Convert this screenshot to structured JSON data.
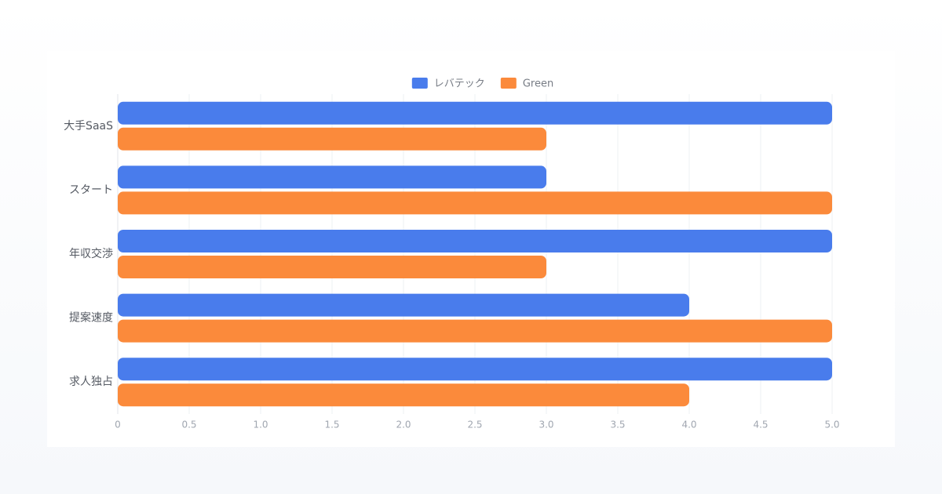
{
  "chart_data": {
    "type": "hbar",
    "categories": [
      "大手SaaS",
      "スタート",
      "年収交渉",
      "提案速度",
      "求人独占"
    ],
    "series": [
      {
        "name": "レバテック",
        "color": "#497cec",
        "values": [
          5,
          3,
          5,
          4,
          5
        ]
      },
      {
        "name": "Green",
        "color": "#fb8a3b",
        "values": [
          3,
          5,
          3,
          5,
          4
        ]
      }
    ],
    "xlim": [
      0,
      5
    ],
    "xticks": [
      0,
      0.5,
      {
        "value": 1,
        "label": "1.0"
      },
      1.5,
      {
        "value": 2,
        "label": "2.0"
      },
      2.5,
      {
        "value": 3,
        "label": "3.0"
      },
      3.5,
      {
        "value": 4,
        "label": "4.0"
      },
      4.5,
      {
        "value": 5,
        "label": "5.0"
      }
    ],
    "grid": true,
    "legend": "top"
  }
}
